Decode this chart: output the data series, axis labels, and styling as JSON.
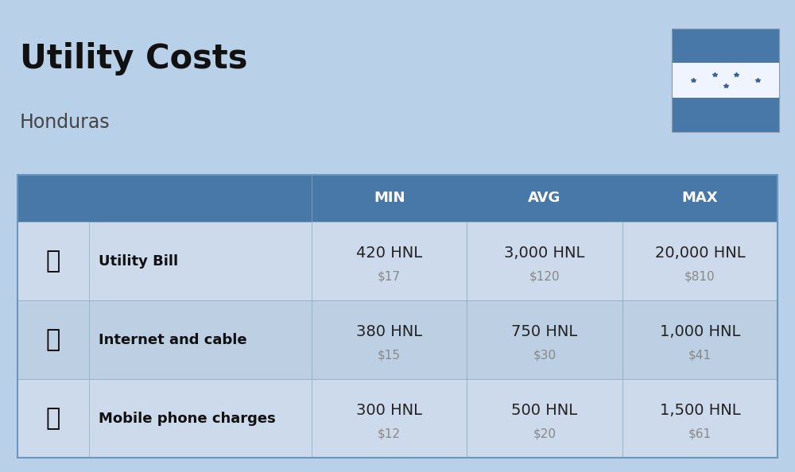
{
  "title": "Utility Costs",
  "subtitle": "Honduras",
  "background_color": "#b8d0e8",
  "header_color": "#4878a8",
  "header_text_color": "#ffffff",
  "row_color_1": "#ccdaeb",
  "row_color_2": "#bccfe3",
  "icon_bg_color": "#b8d0e8",
  "col_headers": [
    "MIN",
    "AVG",
    "MAX"
  ],
  "rows": [
    {
      "label": "Utility Bill",
      "min_hnl": "420 HNL",
      "min_usd": "$17",
      "avg_hnl": "3,000 HNL",
      "avg_usd": "$120",
      "max_hnl": "20,000 HNL",
      "max_usd": "$810"
    },
    {
      "label": "Internet and cable",
      "min_hnl": "380 HNL",
      "min_usd": "$15",
      "avg_hnl": "750 HNL",
      "avg_usd": "$30",
      "max_hnl": "1,000 HNL",
      "max_usd": "$41"
    },
    {
      "label": "Mobile phone charges",
      "min_hnl": "300 HNL",
      "min_usd": "$12",
      "avg_hnl": "500 HNL",
      "avg_usd": "$20",
      "max_hnl": "1,500 HNL",
      "max_usd": "$61"
    }
  ],
  "title_fontsize": 30,
  "subtitle_fontsize": 17,
  "header_fontsize": 13,
  "label_fontsize": 13,
  "value_fontsize": 14,
  "usd_fontsize": 11,
  "usd_color": "#888888",
  "label_color": "#111111",
  "value_color": "#222222",
  "flag_blue": "#4878a8",
  "flag_white": "#f0f4ff",
  "flag_star_color": "#3a5e9a",
  "table_border_color": "#6a96c0",
  "cell_border_color": "#8aabbf"
}
